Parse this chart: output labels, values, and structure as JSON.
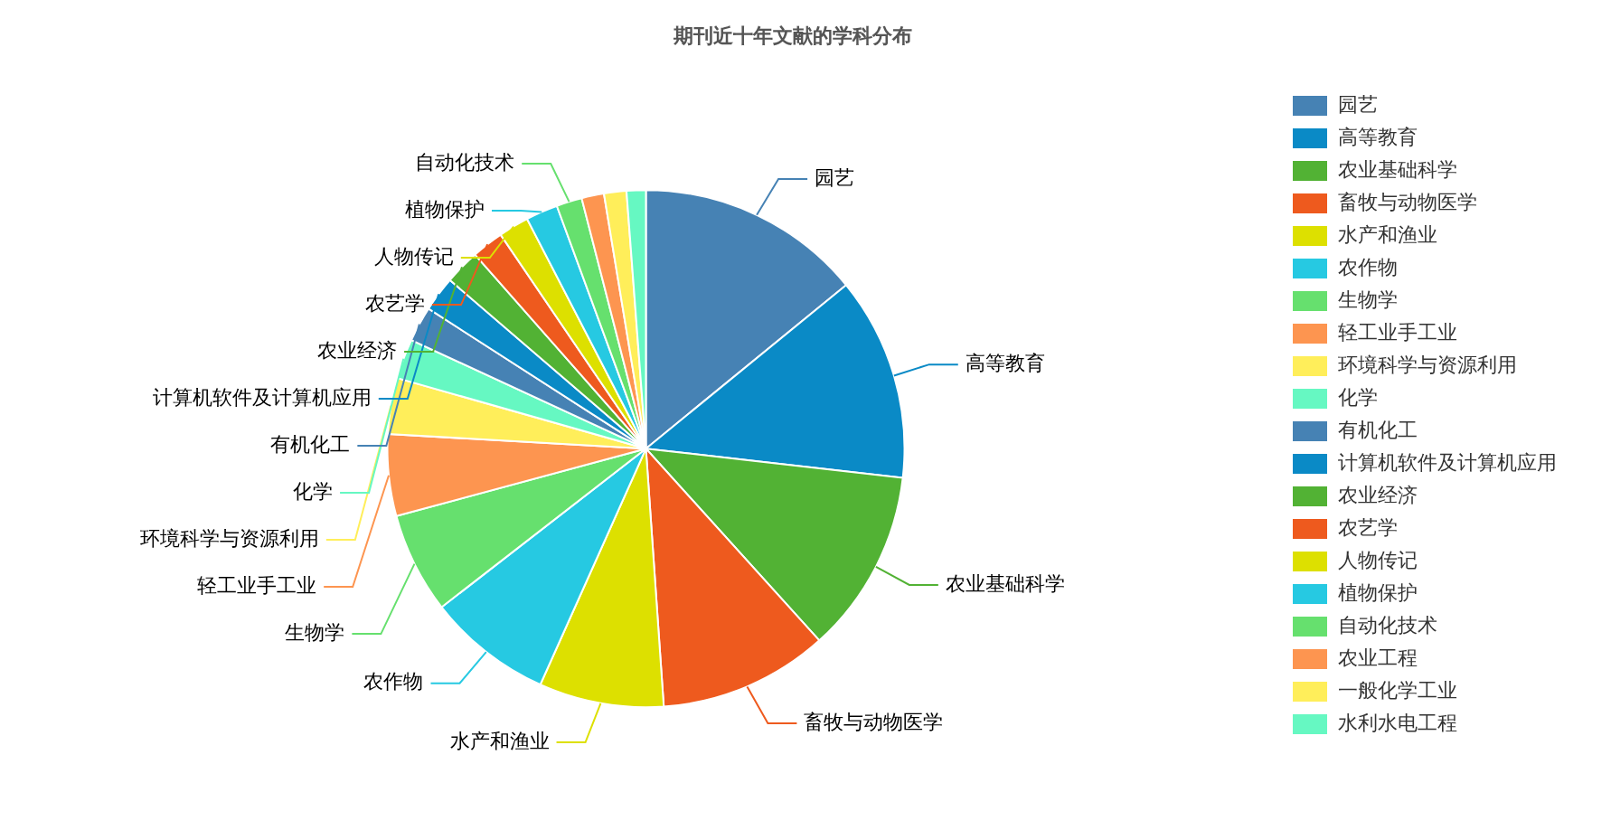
{
  "chart_data": {
    "type": "pie",
    "title": "期刊近十年文献的学科分布",
    "categories": [
      "园艺",
      "高等教育",
      "农业基础科学",
      "畜牧与动物医学",
      "水产和渔业",
      "农作物",
      "生物学",
      "轻工业手工业",
      "环境科学与资源利用",
      "化学",
      "有机化工",
      "计算机软件及计算机应用",
      "农业经济",
      "农艺学",
      "人物传记",
      "植物保护",
      "自动化技术",
      "农业工程",
      "一般化学工业",
      "水利水电工程"
    ],
    "values": [
      14.1,
      12.7,
      11.5,
      10.6,
      7.8,
      7.8,
      6.3,
      5.1,
      3.5,
      2.5,
      2.2,
      2.2,
      2.2,
      2.0,
      1.9,
      2.0,
      1.6,
      1.4,
      1.4,
      1.2
    ],
    "colors": [
      "#4682b4",
      "#0a8ac6",
      "#52b234",
      "#ee5a1e",
      "#dde000",
      "#26c9e2",
      "#66e06e",
      "#fd9550",
      "#ffee5a",
      "#66f8c2",
      "#4682b4",
      "#0a8ac6",
      "#52b234",
      "#ee5a1e",
      "#dde000",
      "#26c9e2",
      "#66e06e",
      "#fd9550",
      "#ffee5a",
      "#66f8c2"
    ],
    "legend": "right"
  }
}
